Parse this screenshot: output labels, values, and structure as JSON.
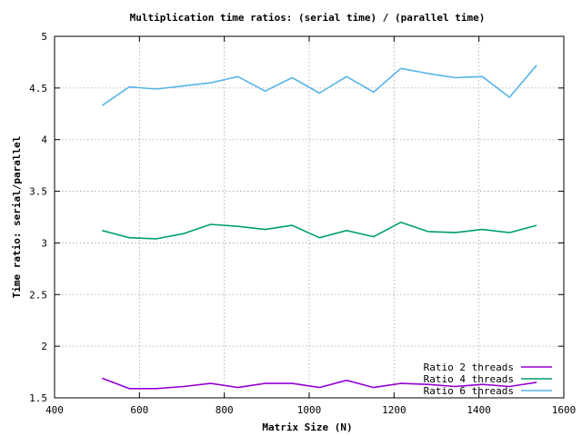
{
  "chart_data": {
    "type": "line",
    "title": "Multiplication time ratios: (serial time) / (parallel time)",
    "xlabel": "Matrix Size (N)",
    "ylabel": "Time ratio: serial/parallel",
    "xlim": [
      400,
      1600
    ],
    "ylim": [
      1.5,
      5
    ],
    "x_ticks": [
      400,
      600,
      800,
      1000,
      1200,
      1400,
      1600
    ],
    "y_ticks": [
      1.5,
      2,
      2.5,
      3,
      3.5,
      4,
      4.5,
      5
    ],
    "x_tick_labels": [
      "400",
      "600",
      "800",
      "1000",
      "1200",
      "1400",
      "1600"
    ],
    "y_tick_labels": [
      "1.5",
      "2",
      "2.5",
      "3",
      "3.5",
      "4",
      "4.5",
      "5"
    ],
    "grid": true,
    "legend_position": "bottom-right",
    "x": [
      512,
      576,
      640,
      704,
      768,
      832,
      896,
      960,
      1024,
      1088,
      1152,
      1216,
      1280,
      1344,
      1408,
      1472,
      1536
    ],
    "series": [
      {
        "name": "Ratio 2 threads",
        "color": "#9400d3",
        "values": [
          1.69,
          1.59,
          1.59,
          1.61,
          1.64,
          1.6,
          1.64,
          1.64,
          1.6,
          1.67,
          1.6,
          1.64,
          1.63,
          1.61,
          1.63,
          1.61,
          1.65
        ]
      },
      {
        "name": "Ratio 4 threads",
        "color": "#009e73",
        "values": [
          3.12,
          3.05,
          3.04,
          3.09,
          3.18,
          3.16,
          3.13,
          3.17,
          3.05,
          3.12,
          3.06,
          3.2,
          3.11,
          3.1,
          3.13,
          3.1,
          3.17
        ]
      },
      {
        "name": "Ratio 6 threads",
        "color": "#56b4e9",
        "values": [
          4.33,
          4.51,
          4.49,
          4.52,
          4.55,
          4.61,
          4.47,
          4.6,
          4.45,
          4.61,
          4.46,
          4.69,
          4.64,
          4.6,
          4.61,
          4.41,
          4.72
        ]
      }
    ]
  }
}
